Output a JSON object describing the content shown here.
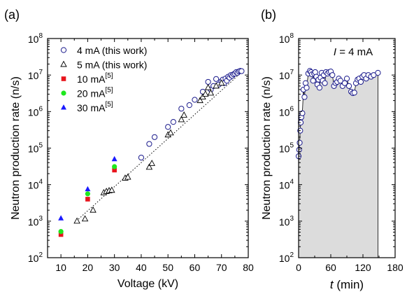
{
  "chart_data": [
    {
      "panel": "(a)",
      "type": "scatter",
      "xlabel": "Voltage (kV)",
      "ylabel": "Neutron production rate (n/s)",
      "xlim": [
        5,
        80
      ],
      "ylim": [
        100,
        100000000
      ],
      "yscale": "log",
      "grid": false,
      "legend_position": "top-left",
      "x_ticks": [
        "10",
        "20",
        "30",
        "40",
        "50",
        "60",
        "70",
        "80"
      ],
      "y_ticks": [
        {
          "base": "10",
          "exp": "2"
        },
        {
          "base": "10",
          "exp": "3"
        },
        {
          "base": "10",
          "exp": "4"
        },
        {
          "base": "10",
          "exp": "5"
        },
        {
          "base": "10",
          "exp": "6"
        },
        {
          "base": "10",
          "exp": "7"
        },
        {
          "base": "10",
          "exp": "8"
        }
      ],
      "fit_line": {
        "style": "dotted",
        "color": "#000000",
        "x": [
          15,
          77
        ],
        "y": [
          900,
          11000000
        ]
      },
      "series": [
        {
          "name": "4 mA (this work)",
          "marker": "open-circle",
          "color": "#1a1a8c",
          "x": [
            40,
            43,
            45,
            50,
            52,
            55,
            58,
            60,
            63,
            65,
            66,
            67,
            68,
            69,
            70,
            70.5,
            71,
            71.5,
            72,
            72.5,
            73,
            73.5,
            74,
            74.5,
            75,
            75.5,
            76,
            76.5,
            77,
            77.5
          ],
          "y": [
            55000,
            130000,
            200000,
            380000,
            520000,
            1200000,
            1500000,
            2100000,
            3500000,
            6500000,
            4000000,
            5000000,
            7800000,
            5500000,
            6800000,
            7500000,
            6000000,
            8000000,
            7000000,
            9000000,
            8500000,
            10000000,
            9500000,
            10500000,
            11000000,
            12000000,
            11500000,
            12500000,
            13000000,
            12800000
          ]
        },
        {
          "name": "5 mA (this work)",
          "marker": "open-triangle",
          "color": "#000000",
          "x": [
            16,
            19,
            22,
            26,
            27,
            28,
            29,
            34,
            35,
            43,
            44,
            50,
            51,
            55,
            56,
            62,
            63,
            64,
            65,
            66,
            68,
            70
          ],
          "y": [
            1000,
            1150,
            2000,
            6000,
            6500,
            6800,
            7000,
            15000,
            16000,
            30000,
            38000,
            230000,
            260000,
            600000,
            800000,
            2000000,
            2500000,
            3000000,
            4500000,
            3200000,
            5000000,
            6000000
          ]
        },
        {
          "name": "10 mA",
          "legend_ref": "[5]",
          "marker": "filled-square",
          "color": "#e8141c",
          "x": [
            10,
            20,
            30
          ],
          "y": [
            430,
            4000,
            25000
          ]
        },
        {
          "name": "20 mA",
          "legend_ref": "[5]",
          "marker": "filled-circle",
          "color": "#1ee81e",
          "x": [
            10,
            20,
            30
          ],
          "y": [
            520,
            5600,
            31000
          ]
        },
        {
          "name": "30 mA",
          "legend_ref": "[5]",
          "marker": "filled-triangle",
          "color": "#1a1aff",
          "x": [
            10,
            20,
            30
          ],
          "y": [
            1200,
            7500,
            50000
          ]
        }
      ]
    },
    {
      "panel": "(b)",
      "type": "area",
      "xlabel": "t (min)",
      "xlabel_italic_part": "t",
      "xlabel_rest": " (min)",
      "ylabel": "Neutron production rate (n/s)",
      "xlim": [
        0,
        180
      ],
      "ylim": [
        100,
        100000000
      ],
      "yscale": "log",
      "grid": false,
      "annotation": {
        "italic": "I",
        "text": " = 4 mA"
      },
      "fill_color": "#dcdcdc",
      "x_ticks": [
        "0",
        "60",
        "120",
        "180"
      ],
      "y_ticks": [
        {
          "base": "10",
          "exp": "2"
        },
        {
          "base": "10",
          "exp": "3"
        },
        {
          "base": "10",
          "exp": "4"
        },
        {
          "base": "10",
          "exp": "5"
        },
        {
          "base": "10",
          "exp": "6"
        },
        {
          "base": "10",
          "exp": "7"
        },
        {
          "base": "10",
          "exp": "8"
        }
      ],
      "series": [
        {
          "name": "",
          "marker": "open-circle",
          "color": "#1a1a8c",
          "x": [
            0,
            1,
            2,
            3,
            4,
            5,
            7,
            9,
            11,
            13,
            15,
            18,
            21,
            23,
            25,
            27,
            29,
            31,
            33,
            35,
            37,
            39,
            41,
            43,
            45,
            47,
            49,
            51,
            54,
            57,
            60,
            63,
            66,
            69,
            72,
            75,
            78,
            82,
            86,
            90,
            94,
            98,
            101,
            104,
            107,
            110,
            113,
            116,
            119,
            122,
            126,
            130,
            135,
            140,
            148
          ],
          "y": [
            60000,
            90000,
            140000,
            300000,
            500000,
            700000,
            900000,
            4000000,
            2500000,
            6000000,
            4500000,
            11000000,
            13000000,
            12000000,
            10500000,
            7000000,
            11000000,
            12000000,
            9000000,
            5500000,
            7500000,
            4500000,
            8500000,
            11500000,
            7000000,
            10000000,
            6000000,
            12000000,
            11000000,
            12000000,
            12500000,
            10000000,
            5000000,
            6000000,
            6500000,
            8000000,
            7000000,
            5000000,
            6000000,
            8000000,
            5000000,
            3500000,
            3200000,
            3300000,
            6000000,
            7500000,
            8000000,
            6500000,
            9000000,
            10000000,
            8000000,
            10000000,
            9000000,
            10000000,
            11500000
          ]
        }
      ]
    }
  ]
}
